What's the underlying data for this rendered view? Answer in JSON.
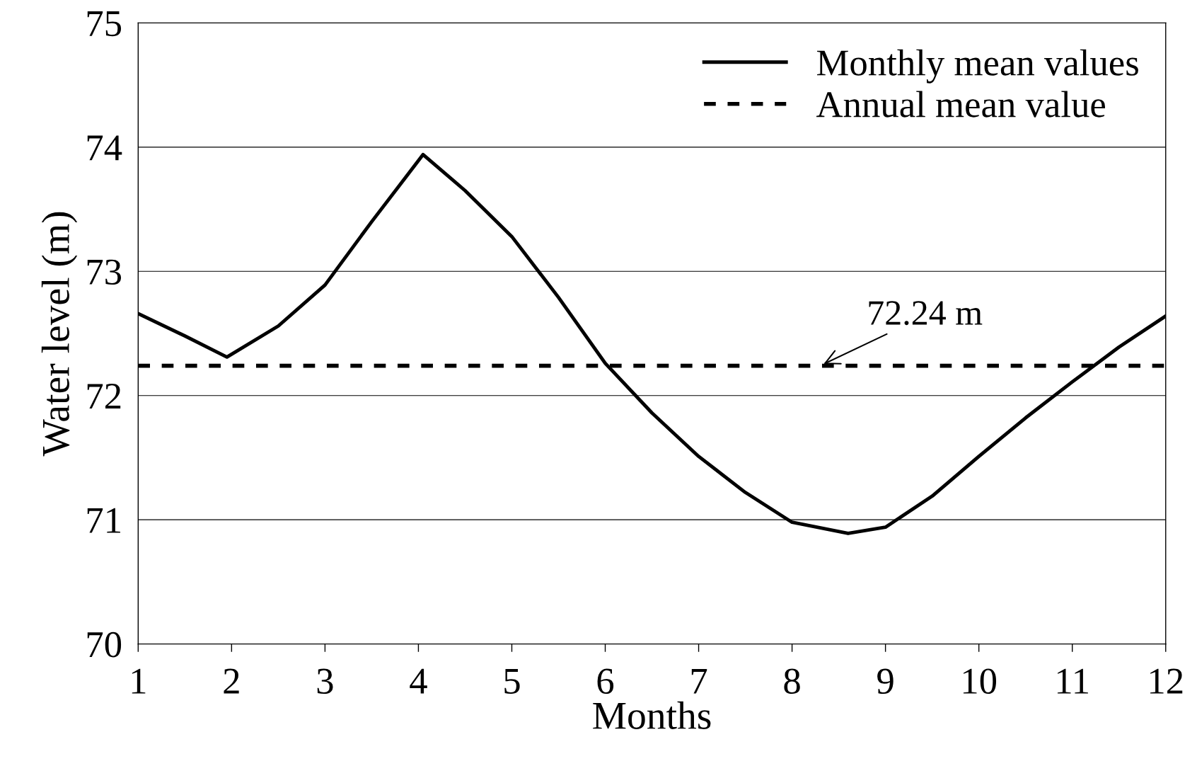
{
  "chart_data": {
    "type": "line",
    "xlabel": "Months",
    "ylabel": "Water level (m)",
    "x": [
      1,
      1.5,
      1.95,
      2.5,
      3,
      3.5,
      4.05,
      4.5,
      5,
      5.5,
      6,
      6.5,
      7,
      7.5,
      8,
      8.6,
      9,
      9.5,
      10,
      10.5,
      11,
      11.5,
      12
    ],
    "series": [
      {
        "name": "Monthly mean values",
        "color": "#000000",
        "values": [
          72.66,
          72.48,
          72.31,
          72.56,
          72.89,
          73.4,
          73.94,
          73.65,
          73.28,
          72.79,
          72.26,
          71.86,
          71.51,
          71.22,
          70.98,
          70.89,
          70.94,
          71.19,
          71.51,
          71.82,
          72.11,
          72.39,
          72.64
        ]
      }
    ],
    "ref_lines": [
      {
        "axis": "y",
        "value": 72.24,
        "label": "Annual mean value",
        "color": "#000000",
        "line_style": "dashed"
      }
    ],
    "annotations": [
      {
        "text": "72.24 m",
        "x": 8.3,
        "y": 72.24
      }
    ],
    "xlim": [
      1,
      12
    ],
    "xticks": [
      1,
      2,
      3,
      4,
      5,
      6,
      7,
      8,
      9,
      10,
      11,
      12
    ],
    "ylim": [
      70,
      75
    ],
    "yticks": [
      70,
      71,
      72,
      73,
      74,
      75
    ],
    "grid": "y",
    "legend": "top right",
    "line_style": "solid",
    "marker": "none"
  }
}
